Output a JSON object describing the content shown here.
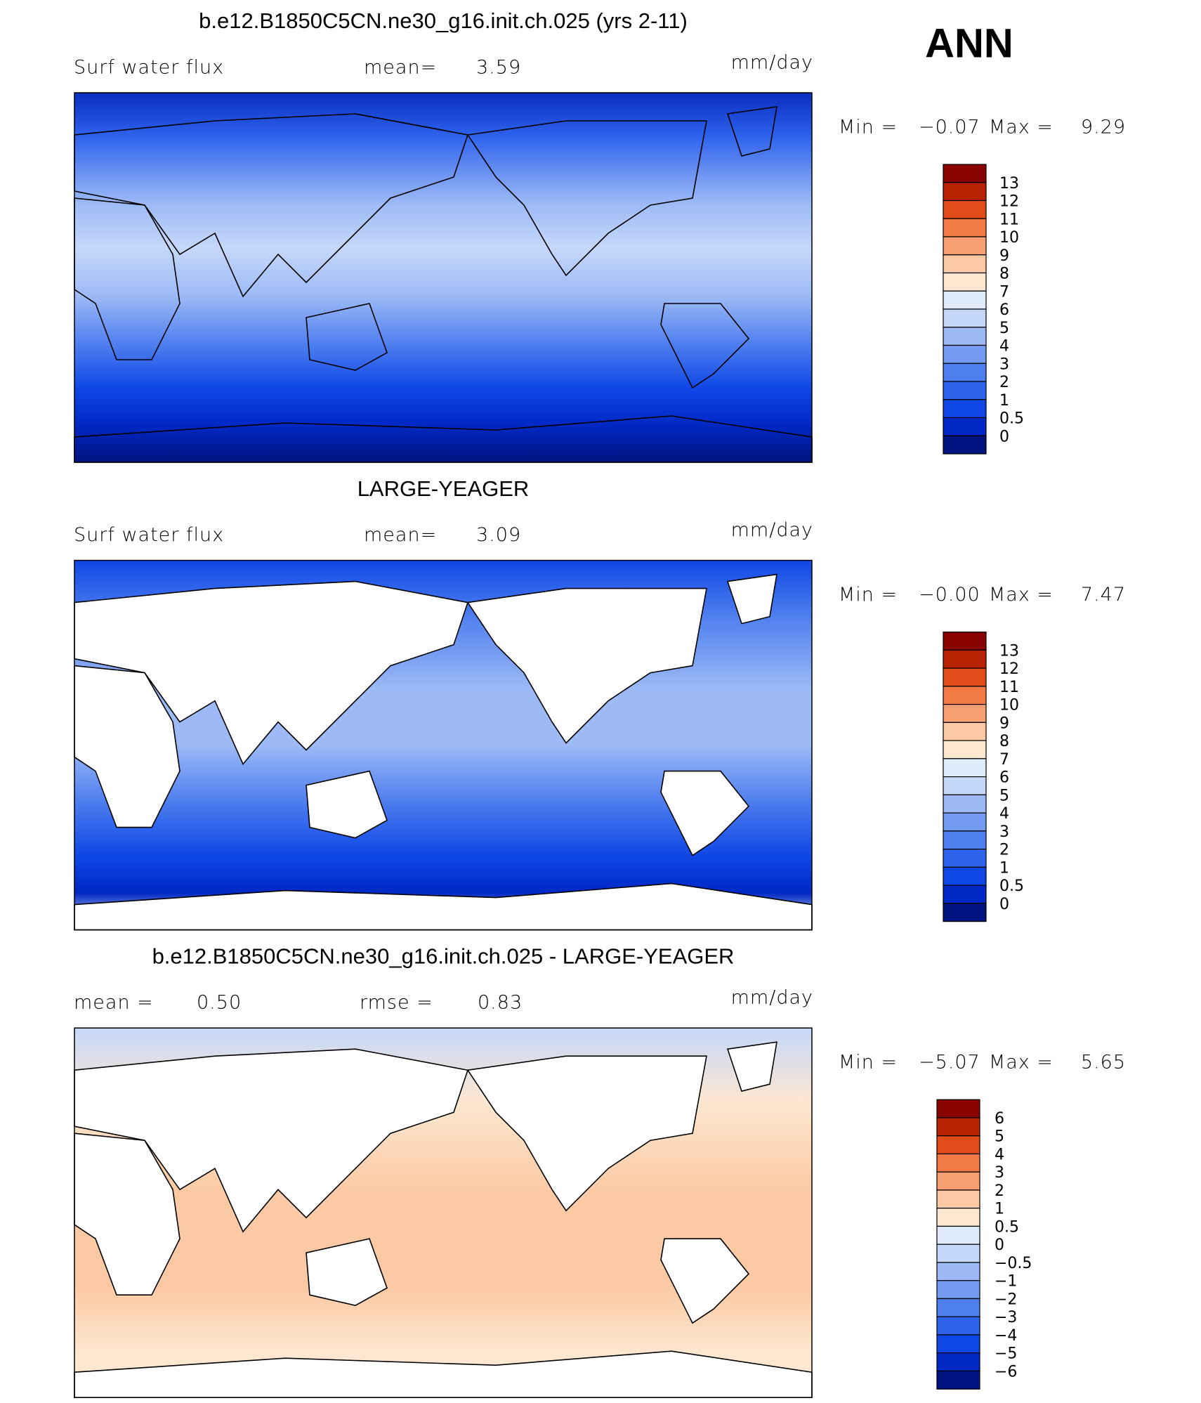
{
  "header": {
    "season": "ANN"
  },
  "colorbar_colors": [
    "#8a0404",
    "#b82304",
    "#e24b1a",
    "#f27a44",
    "#f79f70",
    "#fbc9a3",
    "#fde7d0",
    "#e0ecfb",
    "#c5d8f9",
    "#9dbaf6",
    "#759cf3",
    "#4f7fef",
    "#2f63ec",
    "#0f47e6",
    "#0028c4",
    "#00137f"
  ],
  "panels": [
    {
      "title": "b.e12.B1850C5CN.ne30_g16.init.ch.025 (yrs 2-11)",
      "stats": [
        "Surf water flux",
        "mean=",
        "3.59"
      ],
      "units": "mm/day",
      "min_label": "Min =",
      "min": "−0.07",
      "max_label": "Max =",
      "max": "9.29",
      "colorbar_labels": [
        "13",
        "12",
        "11",
        "10",
        "9",
        "8",
        "7",
        "6",
        "5",
        "4",
        "3",
        "2",
        "1",
        "0.5",
        "0"
      ]
    },
    {
      "title": "LARGE-YEAGER",
      "stats": [
        "Surf water flux",
        "mean=",
        "3.09"
      ],
      "units": "mm/day",
      "min_label": "Min =",
      "min": "−0.00",
      "max_label": "Max =",
      "max": "7.47",
      "colorbar_labels": [
        "13",
        "12",
        "11",
        "10",
        "9",
        "8",
        "7",
        "6",
        "5",
        "4",
        "3",
        "2",
        "1",
        "0.5",
        "0"
      ]
    },
    {
      "title": "b.e12.B1850C5CN.ne30_g16.init.ch.025 - LARGE-YEAGER",
      "stats": [
        "mean =",
        "0.50",
        "rmse =",
        "0.83"
      ],
      "units": "mm/day",
      "min_label": "Min =",
      "min": "−5.07",
      "max_label": "Max =",
      "max": "5.65",
      "colorbar_labels": [
        "6",
        "5",
        "4",
        "3",
        "2",
        "1",
        "0.5",
        "0",
        "−0.5",
        "−1",
        "−2",
        "−3",
        "−4",
        "−5",
        "−6"
      ]
    }
  ]
}
